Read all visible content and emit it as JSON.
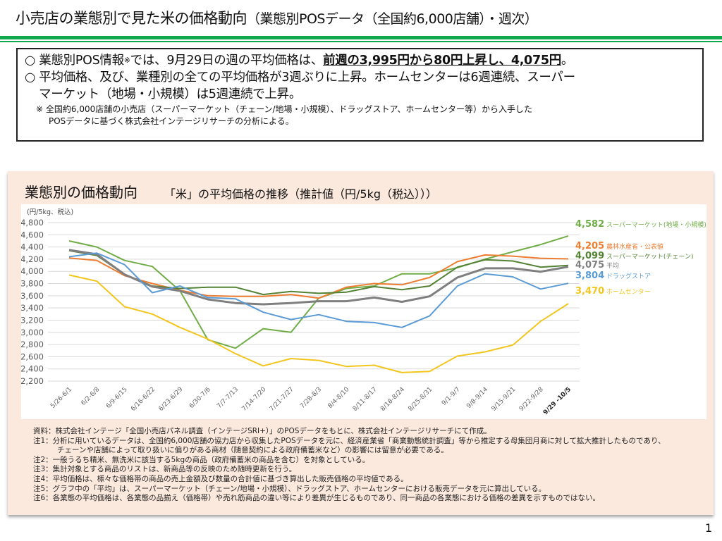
{
  "header": {
    "title_main": "小売店の業態別で見た米の価格動向",
    "title_sub": "（業態別POSデータ（全国約6,000店舗）・週次）"
  },
  "summary": {
    "bullet": "○",
    "line1_a": "業態別POS情報",
    "line1_mark": "※",
    "line1_b": "では、9月29日の週の平均価格は、",
    "line1_u": "前週の3,995円から80円上昇し、4,075円",
    "line1_end": "。",
    "line2": "平均価格、及び、業種別の全ての平均価格が3週ぶりに上昇。ホームセンターは6週連続、スーパー",
    "line3": "マーケット（地場・小規模）は5週連続で上昇。",
    "note1": "※  全国約6,000店舗の小売店（スーパーマーケット（チェーン/地場・小規模）、ドラッグストア、ホームセンター等）から入手した",
    "note2": "POSデータに基づく株式会社インテージリサーチの分析による。"
  },
  "panel": {
    "title": "業態別の価格動向",
    "subtitle": "「米」の平均価格の推移（推計値（円/5kg（税込）））"
  },
  "chart_data": {
    "type": "line",
    "title": "「米」の平均価格の推移（推計値（円/5kg（税込）））",
    "ylabel": "(円/5kg、税込)",
    "xlabel": "",
    "ylim": [
      2200,
      4800
    ],
    "yticks": [
      2200,
      2400,
      2600,
      2800,
      3000,
      3200,
      3400,
      3600,
      3800,
      4000,
      4200,
      4400,
      4600,
      4800
    ],
    "ytick_labels": [
      "2,200",
      "2,400",
      "2,600",
      "2,800",
      "3,000",
      "3,200",
      "3,400",
      "3,600",
      "3,800",
      "4,000",
      "4,200",
      "4,400",
      "4,600",
      "4,800"
    ],
    "grid": true,
    "legend": "right (end labels)",
    "categories": [
      "5/26-6/1",
      "6/2-6/8",
      "6/9-6/15",
      "6/16-6/22",
      "6/23-6/29",
      "6/30-7/6",
      "7/7-7/13",
      "7/14-7/20",
      "7/21-7/27",
      "7/28-8/3",
      "8/4-8/10",
      "8/11-8/17",
      "8/18-8/24",
      "8/25-8/31",
      "9/1-9/7",
      "9/8-9/14",
      "9/15-9/21",
      "9/22-9/28",
      "9/29 -10/5"
    ],
    "series": [
      {
        "name": "スーパーマーケット(地場・小規模)",
        "color": "#70ad47",
        "end_label": "4,582",
        "values": [
          4500,
          4400,
          4180,
          4080,
          3680,
          2880,
          2740,
          3060,
          3000,
          3560,
          3720,
          3760,
          3960,
          3960,
          4060,
          4200,
          4320,
          4440,
          4582
        ]
      },
      {
        "name": "農林水産省・公表値",
        "color": "#ed7d31",
        "end_label": "4,205",
        "values": [
          4220,
          4180,
          3930,
          3800,
          3690,
          3600,
          3590,
          3590,
          3620,
          3560,
          3740,
          3800,
          3780,
          3900,
          4160,
          4270,
          4250,
          4215,
          4205
        ]
      },
      {
        "name": "スーパーマーケット(チェーン)",
        "color": "#548235",
        "end_label": "4,099",
        "values": [
          4340,
          4260,
          3950,
          3760,
          3720,
          3740,
          3740,
          3620,
          3670,
          3640,
          3660,
          3750,
          3700,
          3760,
          4070,
          4190,
          4170,
          4070,
          4099
        ]
      },
      {
        "name": "平均",
        "color": "#7f7f7f",
        "end_label": "4,075",
        "values": [
          4350,
          4280,
          3950,
          3750,
          3680,
          3540,
          3480,
          3460,
          3480,
          3510,
          3510,
          3570,
          3500,
          3590,
          3900,
          4050,
          4050,
          3995,
          4075
        ]
      },
      {
        "name": "ドラッグストア",
        "color": "#5b9bd5",
        "end_label": "3,804",
        "values": [
          4240,
          4300,
          4110,
          3650,
          3760,
          3570,
          3550,
          3330,
          3210,
          3290,
          3180,
          3160,
          3080,
          3270,
          3760,
          3960,
          3910,
          3710,
          3804
        ]
      },
      {
        "name": "ホームセンター",
        "color": "#f2c61f",
        "end_label": "3,470",
        "values": [
          3940,
          3840,
          3420,
          3300,
          3080,
          2890,
          2650,
          2450,
          2570,
          2540,
          2440,
          2460,
          2340,
          2360,
          2610,
          2680,
          2790,
          3180,
          3470
        ]
      }
    ]
  },
  "notes": [
    "資料：株式会社インテージ「全国小売店パネル調査（インテージSRI+）」のPOSデータをもとに、株式会社インテージリサーチにて作成。",
    "注1：分析に用いているデータは、全国約6,000店舗の協力店から収集したPOSデータを元に、経済産業省「商業動態統計調査」等から推定する母集団月商に対して拡大推計したものであり、",
    "チェーンや店舗によって取り扱いに偏りがある商材（随意契約による政府備蓄米など）の影響には留意が必要である。",
    "注2：一般うるち精米、無洗米に該当する5kgの商品（政府備蓄米の商品を含む）を対象としている。",
    "注3：集計対象とする商品のリストは、新商品等の反映のため随時更新を行う。",
    "注4：平均価格は、様々な価格帯の商品の売上金額及び数量の合計値に基づき算出した販売価格の平均値である。",
    "注5：グラフ中の「平均」は、スーパーマーケット（チェーン/地場・小規模）、ドラッグストア、ホームセンターにおける販売データを元に算出している。",
    "注6：各業態の平均価格は、各業態の品揃え（価格帯）や売れ筋商品の違い等により差異が生じるものであり、同一商品の各業態における価格の差異を示すものではない。"
  ],
  "page_number": "1"
}
